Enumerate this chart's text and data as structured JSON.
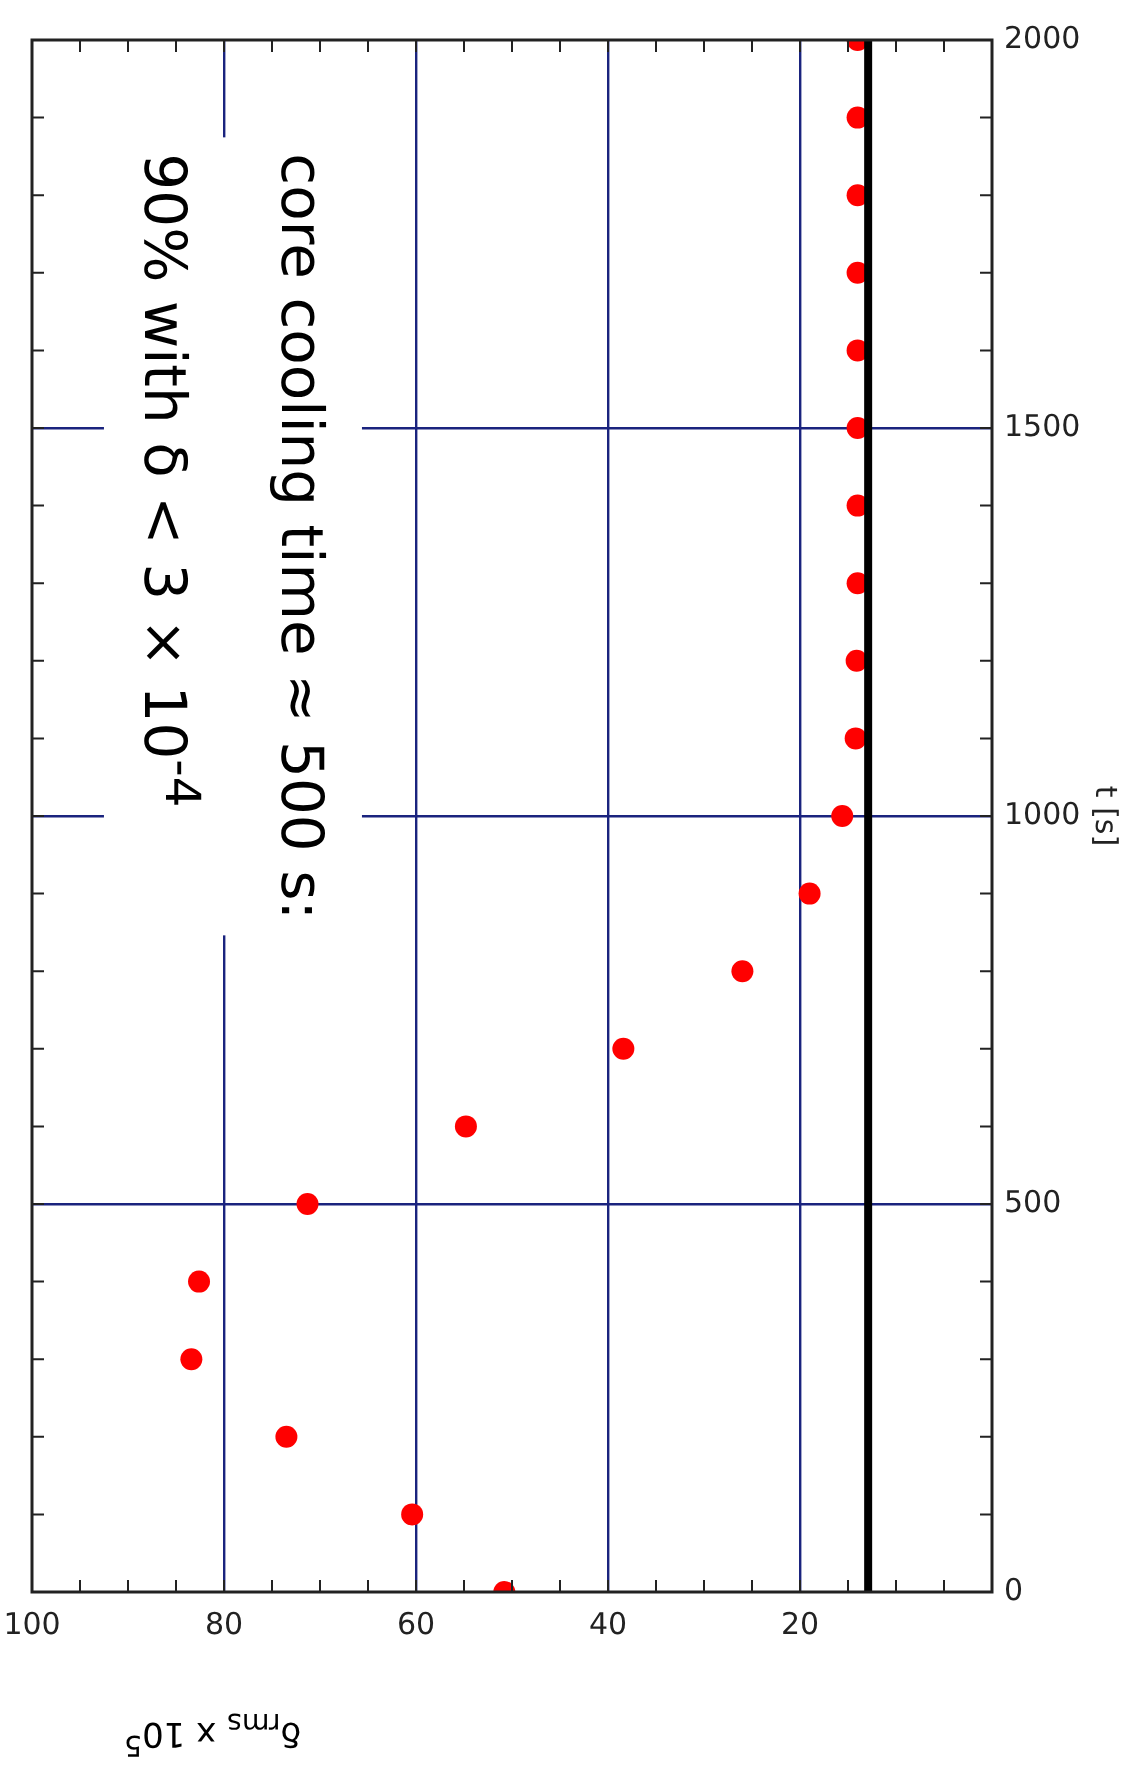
{
  "chart_data": {
    "type": "scatter",
    "xlabel": "δ$_{rms}$ x 10$^{5}$",
    "ylabel": "t [s]",
    "annotations": [
      "core cooling time ≈ 500 s:",
      "90% with δ < 3 × 10$^{-4}$"
    ],
    "x": [
      50.8,
      60.4,
      73.5,
      83.4,
      82.6,
      71.3,
      54.8,
      38.4,
      26.0,
      19.0,
      15.6,
      14.2,
      14.1,
      14.0,
      14.0,
      14.0,
      14.0,
      14.0,
      14.0,
      14.0,
      14.0
    ],
    "series": [
      {
        "color": "#ff0000",
        "values": [
          0,
          100,
          200,
          300,
          400,
          500,
          600,
          700,
          800,
          900,
          1000,
          1100,
          1200,
          1300,
          1400,
          1500,
          1600,
          1700,
          1800,
          1900,
          2000
        ]
      }
    ],
    "ylim": [
      0,
      2000
    ],
    "yticks": [
      0,
      {
        "value": 100,
        "label": null
      },
      {
        "value": 200,
        "label": null
      },
      {
        "value": 300,
        "label": null
      },
      {
        "value": 400,
        "label": null
      },
      500,
      {
        "value": 600,
        "label": null
      },
      {
        "value": 700,
        "label": null
      },
      {
        "value": 800,
        "label": null
      },
      {
        "value": 900,
        "label": null
      },
      1000,
      {
        "value": 1100,
        "label": null
      },
      {
        "value": 1200,
        "label": null
      },
      {
        "value": 1300,
        "label": null
      },
      {
        "value": 1400,
        "label": null
      },
      1500,
      {
        "value": 1600,
        "label": null
      },
      {
        "value": 1700,
        "label": null
      },
      {
        "value": 1800,
        "label": null
      },
      {
        "value": 1900,
        "label": null
      },
      2000
    ],
    "xlim": [
      100,
      0
    ],
    "xticks": [
      {
        "value": 0,
        "label": null
      },
      {
        "value": 5,
        "label": null
      },
      {
        "value": 10,
        "label": null
      },
      {
        "value": 15,
        "label": null
      },
      20,
      {
        "value": 25,
        "label": null
      },
      {
        "value": 30,
        "label": null
      },
      {
        "value": 35,
        "label": null
      },
      40,
      {
        "value": 45,
        "label": null
      },
      {
        "value": 50,
        "label": null
      },
      {
        "value": 55,
        "label": null
      },
      60,
      {
        "value": 65,
        "label": null
      },
      {
        "value": 70,
        "label": null
      },
      {
        "value": 75,
        "label": null
      },
      80,
      {
        "value": 85,
        "label": null
      },
      {
        "value": 90,
        "label": null
      },
      {
        "value": 95,
        "label": null
      },
      100
    ],
    "ref_lines": [
      {
        "axis": "x",
        "value": 12.9,
        "color": "#000000",
        "line_style": "solid"
      }
    ],
    "grid": true,
    "legend": false,
    "marker": "circle"
  }
}
